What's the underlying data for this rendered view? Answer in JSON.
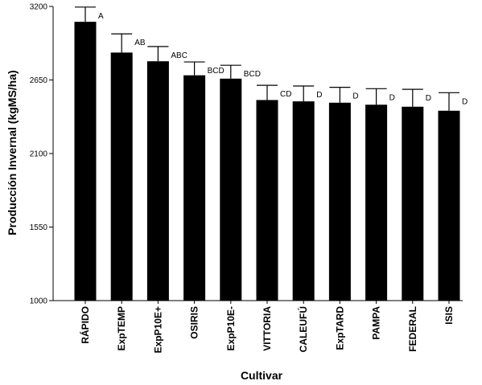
{
  "chart_data": {
    "type": "bar",
    "title": "",
    "xlabel": "Cultivar",
    "ylabel": "Producción Invernal (kgMS/ha)",
    "ylim": [
      1000,
      3200
    ],
    "yticks": [
      1000,
      1550,
      2100,
      2650,
      3200
    ],
    "grid": false,
    "bar_color": "#000000",
    "categories": [
      "RÁPIDO",
      "ExpTEMP",
      "ExpP10E+",
      "OSIRIS",
      "ExpP10E-",
      "VITTORIA",
      "CALEUFÚ",
      "ExpTARD",
      "PAMPA",
      "FEDERAL",
      "ISIS"
    ],
    "values": [
      3085,
      2855,
      2790,
      2685,
      2660,
      2500,
      2490,
      2480,
      2465,
      2450,
      2420
    ],
    "error_upper": [
      3195,
      2995,
      2900,
      2785,
      2760,
      2610,
      2605,
      2595,
      2585,
      2580,
      2555
    ],
    "significance": [
      "A",
      "AB",
      "ABC",
      "BCD",
      "BCD",
      "CD",
      "D",
      "D",
      "D",
      "D",
      "D"
    ]
  }
}
